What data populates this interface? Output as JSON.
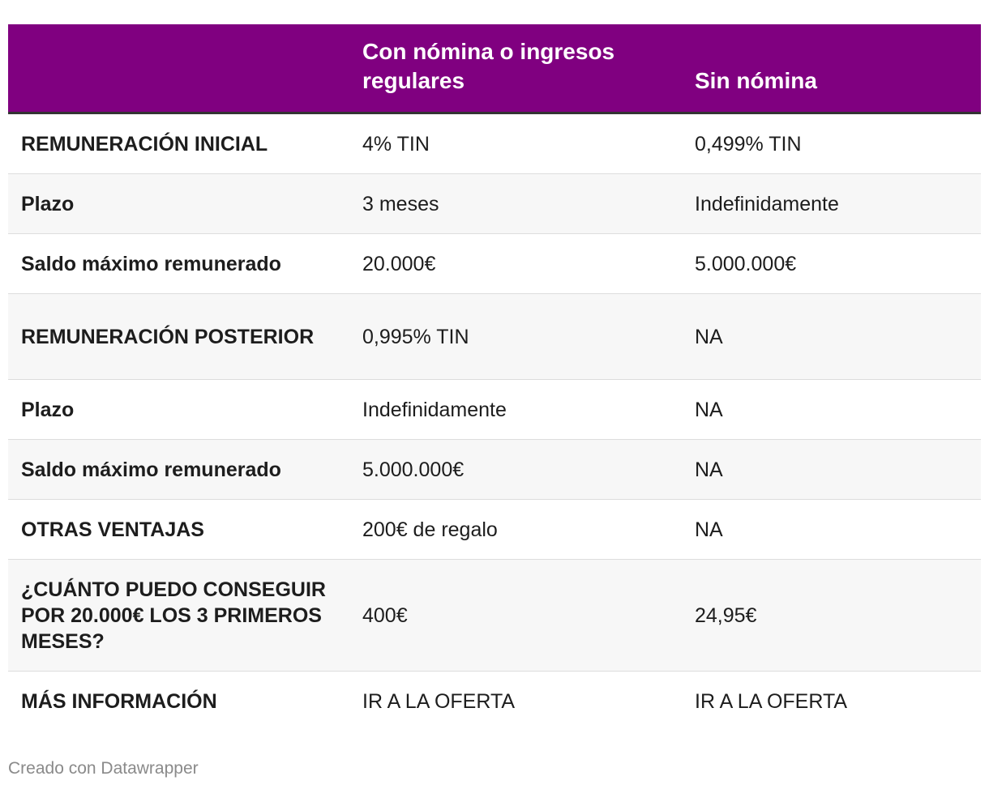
{
  "header": {
    "col0": "",
    "col1": "Con nómina o ingresos regulares",
    "col2": "Sin nómina"
  },
  "rows": [
    {
      "label": "REMUNERACIÓN INICIAL",
      "con_nomina": "4% TIN",
      "sin_nomina": "0,499% TIN"
    },
    {
      "label": "Plazo",
      "con_nomina": "3 meses",
      "sin_nomina": "Indefinidamente"
    },
    {
      "label": "Saldo máximo remunerado",
      "con_nomina": "20.000€",
      "sin_nomina": "5.000.000€"
    },
    {
      "label": "REMUNERACIÓN POSTERIOR",
      "con_nomina": "0,995% TIN",
      "sin_nomina": "NA"
    },
    {
      "label": "Plazo",
      "con_nomina": "Indefinidamente",
      "sin_nomina": "NA"
    },
    {
      "label": "Saldo máximo remunerado",
      "con_nomina": "5.000.000€",
      "sin_nomina": "NA"
    },
    {
      "label": "OTRAS VENTAJAS",
      "con_nomina": "200€ de regalo",
      "sin_nomina": "NA"
    },
    {
      "label": "¿CUÁNTO PUEDO CONSEGUIR POR 20.000€ LOS 3 PRIMEROS MESES?",
      "con_nomina": "400€",
      "sin_nomina": "24,95€"
    },
    {
      "label": "MÁS INFORMACIÓN",
      "con_nomina": "IR A LA OFERTA",
      "sin_nomina": "IR A LA OFERTA"
    }
  ],
  "footer": {
    "credit": "Creado con Datawrapper"
  },
  "colors": {
    "header_bg": "#800080",
    "header_text": "#ffffff",
    "alt_row_bg": "#f7f7f7",
    "footer_text": "#8a8a8a"
  }
}
